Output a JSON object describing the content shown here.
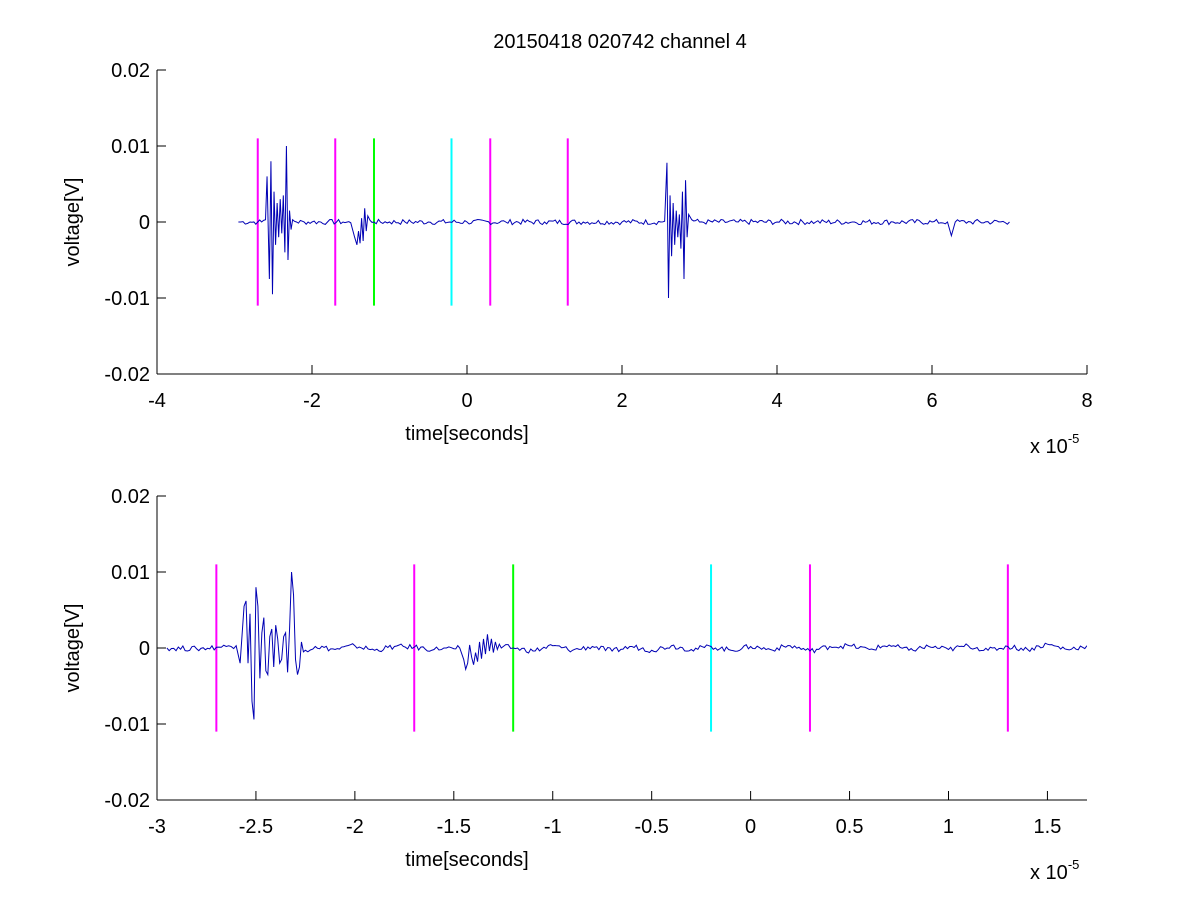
{
  "figure_title": "20150418 020742 channel 4",
  "colors": {
    "trace": "#0000b4",
    "magenta": "#ff00ff",
    "green": "#00ff00",
    "cyan": "#00ffff",
    "axis": "#000000"
  },
  "chart_data": [
    {
      "type": "line",
      "title": "20150418 020742 channel 4",
      "xlabel": "time[seconds]",
      "ylabel": "voltage[V]",
      "x_multiplier": "x 10",
      "x_multiplier_exponent": "-5",
      "xlim": [
        -4,
        8
      ],
      "ylim": [
        -0.02,
        0.02
      ],
      "xticks": [
        -4,
        -2,
        0,
        2,
        4,
        6,
        8
      ],
      "xtick_labels": [
        "-4",
        "-2",
        "0",
        "2",
        "4",
        "6",
        "8"
      ],
      "yticks": [
        -0.02,
        -0.01,
        0,
        0.01,
        0.02
      ],
      "ytick_labels": [
        "-0.02",
        "-0.01",
        "0",
        "0.01",
        "0.02"
      ],
      "grid": false,
      "series": [
        {
          "x": [
            -2.95,
            -2.8,
            -2.7,
            -2.65,
            -2.6,
            -2.58,
            -2.55,
            -2.53,
            -2.51,
            -2.49,
            -2.47,
            -2.45,
            -2.43,
            -2.41,
            -2.39,
            -2.37,
            -2.35,
            -2.33,
            -2.31,
            -2.29,
            -2.27,
            -2.25,
            -2.2,
            -2.1,
            -2.0,
            -1.8,
            -1.6,
            -1.5,
            -1.45,
            -1.42,
            -1.4,
            -1.38,
            -1.36,
            -1.34,
            -1.32,
            -1.3,
            -1.28,
            -1.25,
            -1.2,
            -1.0,
            -0.8,
            -0.5,
            0.0,
            0.5,
            1.0,
            1.5,
            2.0,
            2.5,
            2.55,
            2.58,
            2.6,
            2.62,
            2.64,
            2.66,
            2.68,
            2.7,
            2.72,
            2.74,
            2.76,
            2.78,
            2.8,
            2.82,
            2.84,
            2.86,
            2.9,
            3.0,
            3.5,
            4.0,
            4.5,
            5.0,
            5.5,
            6.0,
            6.2,
            6.25,
            6.3,
            6.5,
            7.0
          ],
          "y": [
            0.0,
            0.0,
            0.0,
            0.0,
            0.0003,
            0.006,
            -0.0075,
            0.008,
            -0.0095,
            0.004,
            -0.003,
            0.0025,
            -0.002,
            0.003,
            -0.0015,
            0.0035,
            -0.004,
            0.01,
            -0.005,
            0.0015,
            -0.001,
            0.0003,
            0.0,
            0.0,
            0.0,
            0.0,
            0.0,
            -0.0001,
            -0.002,
            -0.003,
            -0.0012,
            -0.0028,
            0.0005,
            -0.0025,
            0.0018,
            -0.0012,
            0.0008,
            0.0002,
            0.0,
            0.0,
            0.0,
            0.0,
            0.0,
            0.0,
            0.0,
            0.0,
            0.0,
            0.0,
            0.0001,
            0.0078,
            -0.01,
            0.0035,
            -0.0045,
            0.0025,
            -0.003,
            0.0015,
            -0.002,
            0.001,
            -0.0035,
            0.004,
            -0.0075,
            0.0055,
            -0.002,
            0.001,
            0.0003,
            0.0,
            0.0,
            0.0,
            0.0,
            0.0,
            0.0,
            0.0,
            0.0,
            -0.0018,
            0.0,
            0.0,
            0.0
          ]
        }
      ],
      "vertical_markers": [
        {
          "x": -2.7,
          "y_range": [
            -0.011,
            0.011
          ],
          "color": "magenta"
        },
        {
          "x": -1.7,
          "y_range": [
            -0.011,
            0.011
          ],
          "color": "magenta"
        },
        {
          "x": -1.2,
          "y_range": [
            -0.011,
            0.011
          ],
          "color": "green"
        },
        {
          "x": -0.2,
          "y_range": [
            -0.011,
            0.011
          ],
          "color": "cyan"
        },
        {
          "x": 0.3,
          "y_range": [
            -0.011,
            0.011
          ],
          "color": "magenta"
        },
        {
          "x": 1.3,
          "y_range": [
            -0.011,
            0.011
          ],
          "color": "magenta"
        }
      ]
    },
    {
      "type": "line",
      "title": "",
      "xlabel": "time[seconds]",
      "ylabel": "voltage[V]",
      "x_multiplier": "x 10",
      "x_multiplier_exponent": "-5",
      "xlim": [
        -3.0,
        1.7
      ],
      "ylim": [
        -0.02,
        0.02
      ],
      "xticks": [
        -3,
        -2.5,
        -2,
        -1.5,
        -1,
        -0.5,
        0,
        0.5,
        1,
        1.5
      ],
      "xtick_labels": [
        "-3",
        "-2.5",
        "-2",
        "-1.5",
        "-1",
        "-0.5",
        "0",
        "0.5",
        "1",
        "1.5"
      ],
      "yticks": [
        -0.02,
        -0.01,
        0,
        0.01,
        0.02
      ],
      "ytick_labels": [
        "-0.02",
        "-0.01",
        "0",
        "0.01",
        "0.02"
      ],
      "grid": false,
      "series": [
        {
          "x": [
            -2.95,
            -2.8,
            -2.7,
            -2.65,
            -2.6,
            -2.58,
            -2.56,
            -2.55,
            -2.54,
            -2.53,
            -2.52,
            -2.51,
            -2.5,
            -2.49,
            -2.48,
            -2.47,
            -2.46,
            -2.45,
            -2.44,
            -2.43,
            -2.42,
            -2.41,
            -2.4,
            -2.39,
            -2.38,
            -2.37,
            -2.36,
            -2.35,
            -2.34,
            -2.33,
            -2.32,
            -2.31,
            -2.3,
            -2.29,
            -2.28,
            -2.27,
            -2.26,
            -2.25,
            -2.2,
            -2.1,
            -2.0,
            -1.9,
            -1.8,
            -1.7,
            -1.6,
            -1.55,
            -1.5,
            -1.47,
            -1.45,
            -1.44,
            -1.43,
            -1.42,
            -1.41,
            -1.4,
            -1.39,
            -1.38,
            -1.37,
            -1.36,
            -1.35,
            -1.34,
            -1.33,
            -1.32,
            -1.31,
            -1.3,
            -1.29,
            -1.28,
            -1.27,
            -1.26,
            -1.25,
            -1.2,
            -1.1,
            -1.0,
            -0.9,
            -0.8,
            -0.7,
            -0.6,
            -0.5,
            -0.4,
            -0.3,
            -0.2,
            -0.1,
            0.0,
            0.1,
            0.2,
            0.3,
            0.4,
            0.5,
            0.6,
            0.7,
            0.8,
            0.9,
            1.0,
            1.1,
            1.2,
            1.3,
            1.4,
            1.5,
            1.6,
            1.7
          ],
          "y": [
            0.0,
            -0.0001,
            0.0001,
            0.0002,
            0.0003,
            -0.002,
            0.0055,
            0.0062,
            -0.002,
            0.0045,
            -0.007,
            -0.0094,
            0.008,
            0.0055,
            -0.004,
            0.002,
            0.004,
            -0.003,
            -0.0035,
            0.0015,
            0.0025,
            -0.0025,
            0.003,
            0.0012,
            -0.002,
            -0.0015,
            0.0015,
            0.002,
            -0.0032,
            0.0025,
            0.01,
            0.007,
            -0.0015,
            -0.0035,
            -0.0025,
            0.0008,
            -0.0005,
            -0.0003,
            0.0002,
            -0.0002,
            0.0003,
            -0.0003,
            0.0002,
            0.0001,
            -0.0002,
            0.0,
            -0.0001,
            0.0,
            -0.0015,
            -0.0028,
            -0.002,
            0.0004,
            -0.0012,
            -0.0022,
            -0.0006,
            -0.0018,
            0.0008,
            -0.0014,
            0.0012,
            -0.0008,
            0.0018,
            -0.0004,
            0.0012,
            -0.0006,
            0.0008,
            -0.0002,
            0.0005,
            0.0,
            0.0002,
            0.0,
            -0.0004,
            0.0003,
            -0.0003,
            0.0002,
            -0.0004,
            0.0002,
            -0.0003,
            0.0003,
            -0.0002,
            0.0002,
            -0.0003,
            0.0002,
            -0.0002,
            0.0003,
            -0.0004,
            0.0002,
            0.0003,
            -0.0002,
            0.0004,
            -0.0003,
            0.0002,
            -0.0002,
            0.0003,
            -0.0003,
            0.0002,
            -0.0002,
            0.0005,
            -0.0002,
            0.0003
          ]
        }
      ],
      "vertical_markers": [
        {
          "x": -2.7,
          "y_range": [
            -0.011,
            0.011
          ],
          "color": "magenta"
        },
        {
          "x": -1.7,
          "y_range": [
            -0.011,
            0.011
          ],
          "color": "magenta"
        },
        {
          "x": -1.2,
          "y_range": [
            -0.011,
            0.011
          ],
          "color": "green"
        },
        {
          "x": -0.2,
          "y_range": [
            -0.011,
            0.011
          ],
          "color": "cyan"
        },
        {
          "x": 0.3,
          "y_range": [
            -0.011,
            0.011
          ],
          "color": "magenta"
        },
        {
          "x": 1.3,
          "y_range": [
            -0.011,
            0.011
          ],
          "color": "magenta"
        }
      ]
    }
  ]
}
